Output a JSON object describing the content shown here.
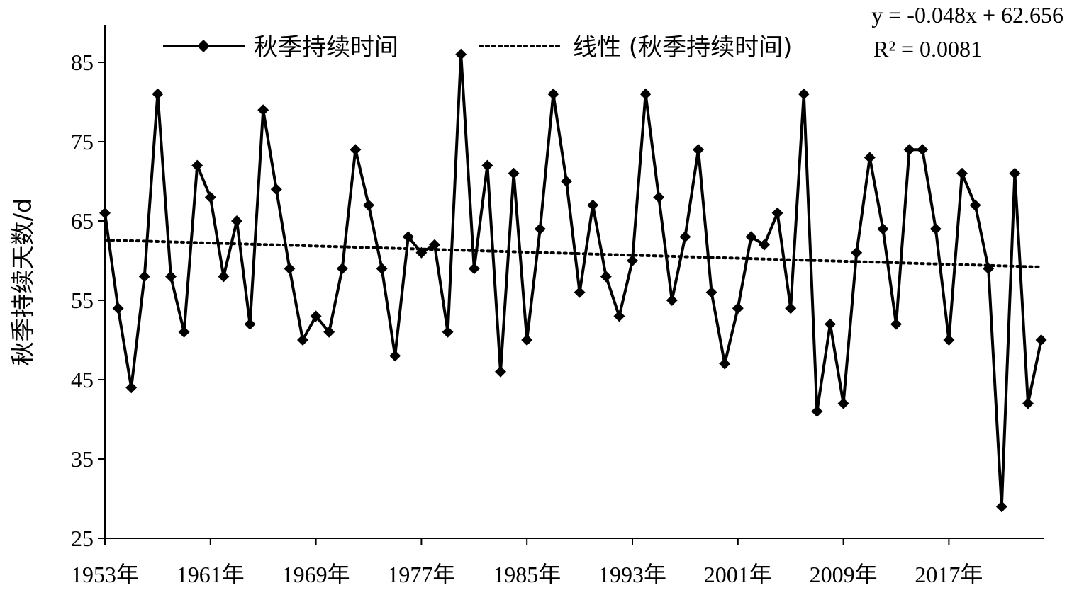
{
  "chart_data": {
    "type": "line",
    "title": "",
    "xlabel": "",
    "ylabel": "秋季持续天数/d",
    "ylim": [
      25,
      90
    ],
    "yticks": [
      25,
      35,
      45,
      55,
      65,
      75,
      85
    ],
    "xrange": [
      1953,
      2024
    ],
    "xtick_labels": [
      "1953年",
      "1961年",
      "1969年",
      "1977年",
      "1985年",
      "1993年",
      "2001年",
      "2009年",
      "2017年"
    ],
    "grid": false,
    "legend_position": "top",
    "series": [
      {
        "name": "秋季持续时间",
        "style": "solid-diamond",
        "x": [
          1953,
          1954,
          1955,
          1956,
          1957,
          1958,
          1959,
          1960,
          1961,
          1962,
          1963,
          1964,
          1965,
          1966,
          1967,
          1968,
          1969,
          1970,
          1971,
          1972,
          1973,
          1974,
          1975,
          1976,
          1977,
          1978,
          1979,
          1980,
          1981,
          1982,
          1983,
          1984,
          1985,
          1986,
          1987,
          1988,
          1989,
          1990,
          1991,
          1992,
          1993,
          1994,
          1995,
          1996,
          1997,
          1998,
          1999,
          2000,
          2001,
          2002,
          2003,
          2004,
          2005,
          2006,
          2007,
          2008,
          2009,
          2010,
          2011,
          2012,
          2013,
          2014,
          2015,
          2016,
          2017,
          2018,
          2019,
          2020,
          2021,
          2022,
          2023,
          2024
        ],
        "values": [
          66,
          54,
          44,
          58,
          81,
          58,
          51,
          72,
          68,
          58,
          65,
          52,
          79,
          69,
          59,
          50,
          53,
          51,
          59,
          74,
          67,
          59,
          48,
          63,
          61,
          62,
          51,
          86,
          59,
          72,
          46,
          71,
          50,
          64,
          81,
          70,
          56,
          67,
          58,
          53,
          60,
          81,
          68,
          55,
          63,
          74,
          56,
          47,
          54,
          63,
          62,
          66,
          54,
          81,
          41,
          52,
          42,
          61,
          73,
          64,
          52,
          74,
          74,
          64,
          50,
          71,
          67,
          59,
          29,
          71,
          42,
          50
        ]
      },
      {
        "name": "线性 (秋季持续时间)",
        "style": "dotted",
        "trendline": {
          "slope": -0.048,
          "intercept": 62.656
        }
      }
    ],
    "annotations": {
      "equation": "y = -0.048x + 62.656",
      "r_squared": "R² = 0.0081"
    }
  }
}
